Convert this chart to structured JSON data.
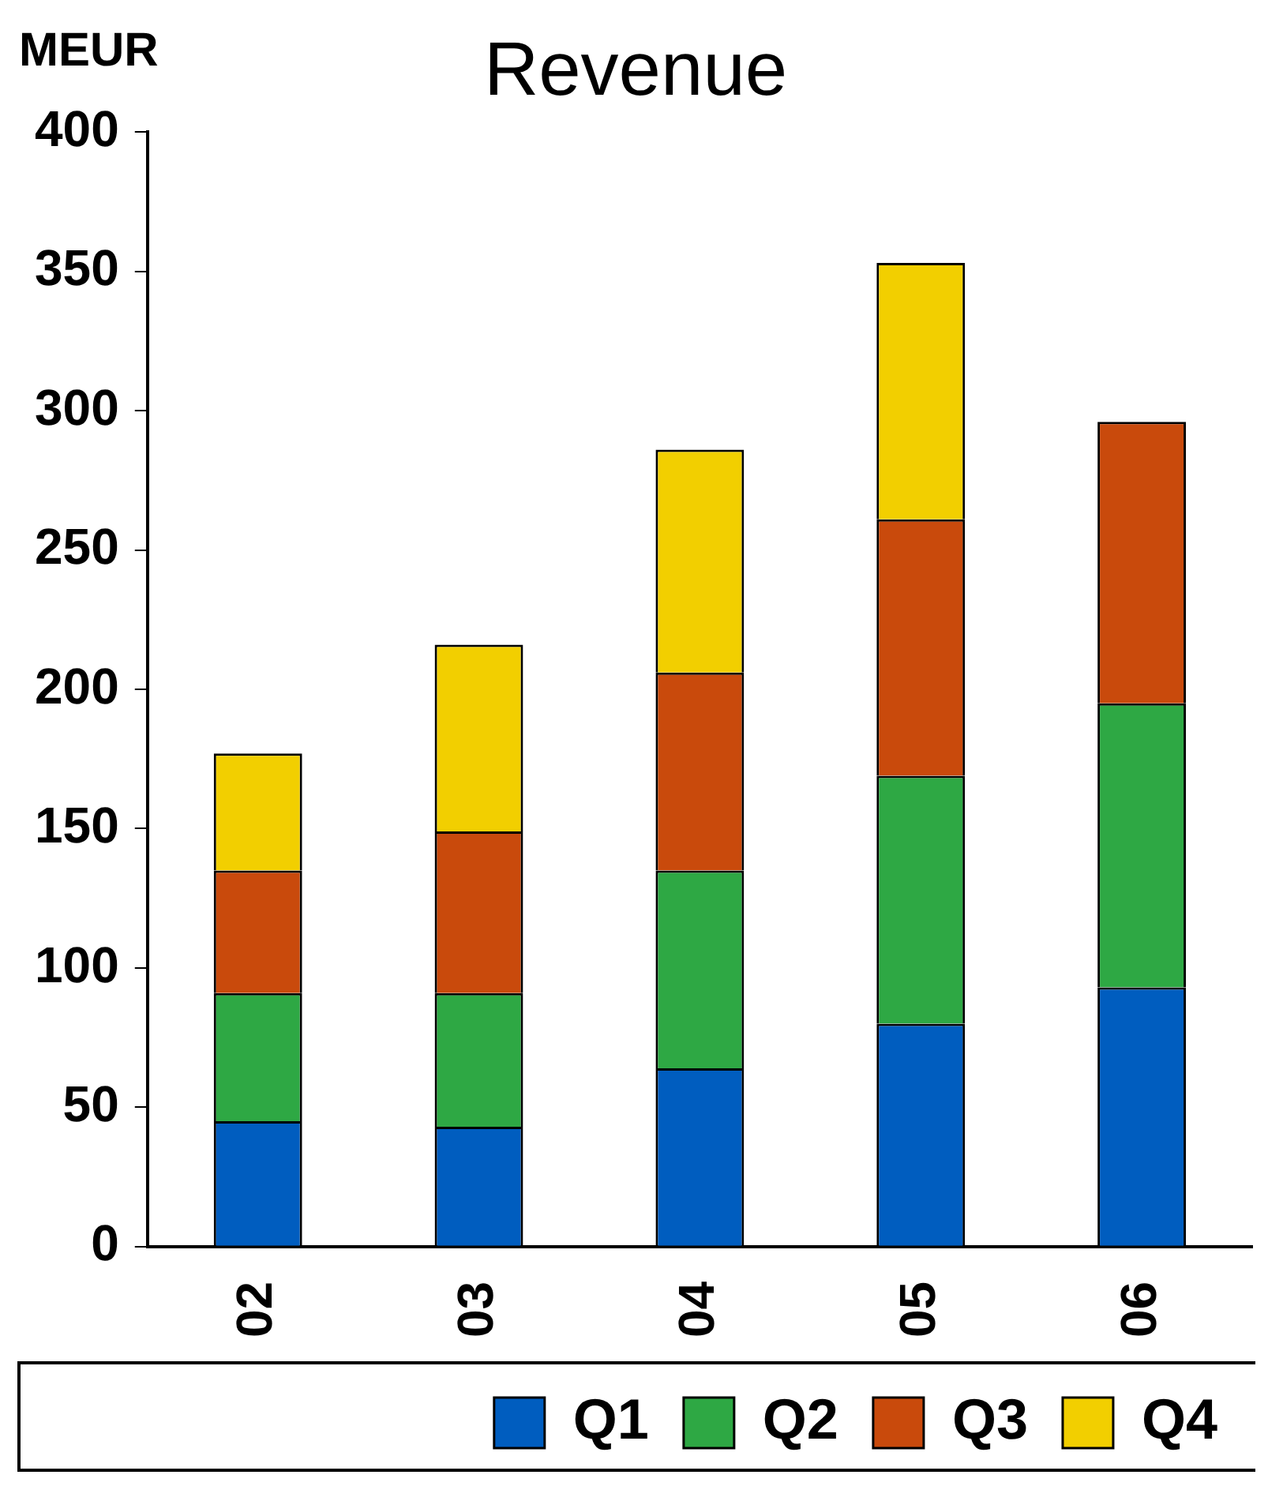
{
  "chart_data": {
    "type": "bar",
    "title": "Revenue",
    "ylabel": "MEUR",
    "categories": [
      "02",
      "03",
      "04",
      "05",
      "06"
    ],
    "stacked": true,
    "series": [
      {
        "name": "Q1",
        "color": "#005dbf",
        "values": [
          45,
          43,
          64,
          80,
          93
        ]
      },
      {
        "name": "Q2",
        "color": "#2ea844",
        "values": [
          46,
          48,
          71,
          89,
          102
        ]
      },
      {
        "name": "Q3",
        "color": "#c94a0c",
        "values": [
          44,
          58,
          71,
          92,
          101
        ]
      },
      {
        "name": "Q4",
        "color": "#f2cf00",
        "values": [
          42,
          67,
          80,
          92,
          null
        ]
      }
    ],
    "ylim": [
      0,
      400
    ],
    "yticks": [
      0,
      50,
      100,
      150,
      200,
      250,
      300,
      350,
      400
    ],
    "grid": false,
    "legend": "bottom right"
  }
}
